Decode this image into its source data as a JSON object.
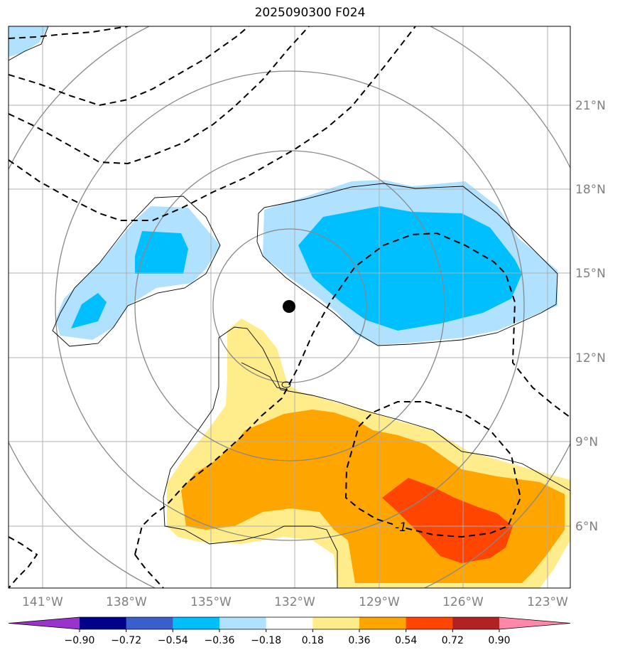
{
  "title": "2025090300 F024",
  "map": {
    "lon_labels": [
      "141°W",
      "138°W",
      "135°W",
      "132°W",
      "129°W",
      "126°W",
      "123°W"
    ],
    "lat_labels": [
      "21°N",
      "18°N",
      "15°N",
      "12°N",
      "9°N",
      "6°N"
    ],
    "contour_label": "-1",
    "center_marker": "storm-center"
  },
  "colorbar": {
    "labels": [
      "−0.90",
      "−0.72",
      "−0.54",
      "−0.36",
      "−0.18",
      "0.18",
      "0.36",
      "0.54",
      "0.72",
      "0.90"
    ],
    "colors": [
      "#9933cc",
      "#00008b",
      "#3a5fcd",
      "#00bfff",
      "#b0e2ff",
      "#ffffff",
      "#ffec8b",
      "#ffa500",
      "#ff4500",
      "#b22222",
      "#ff88aa"
    ]
  }
}
